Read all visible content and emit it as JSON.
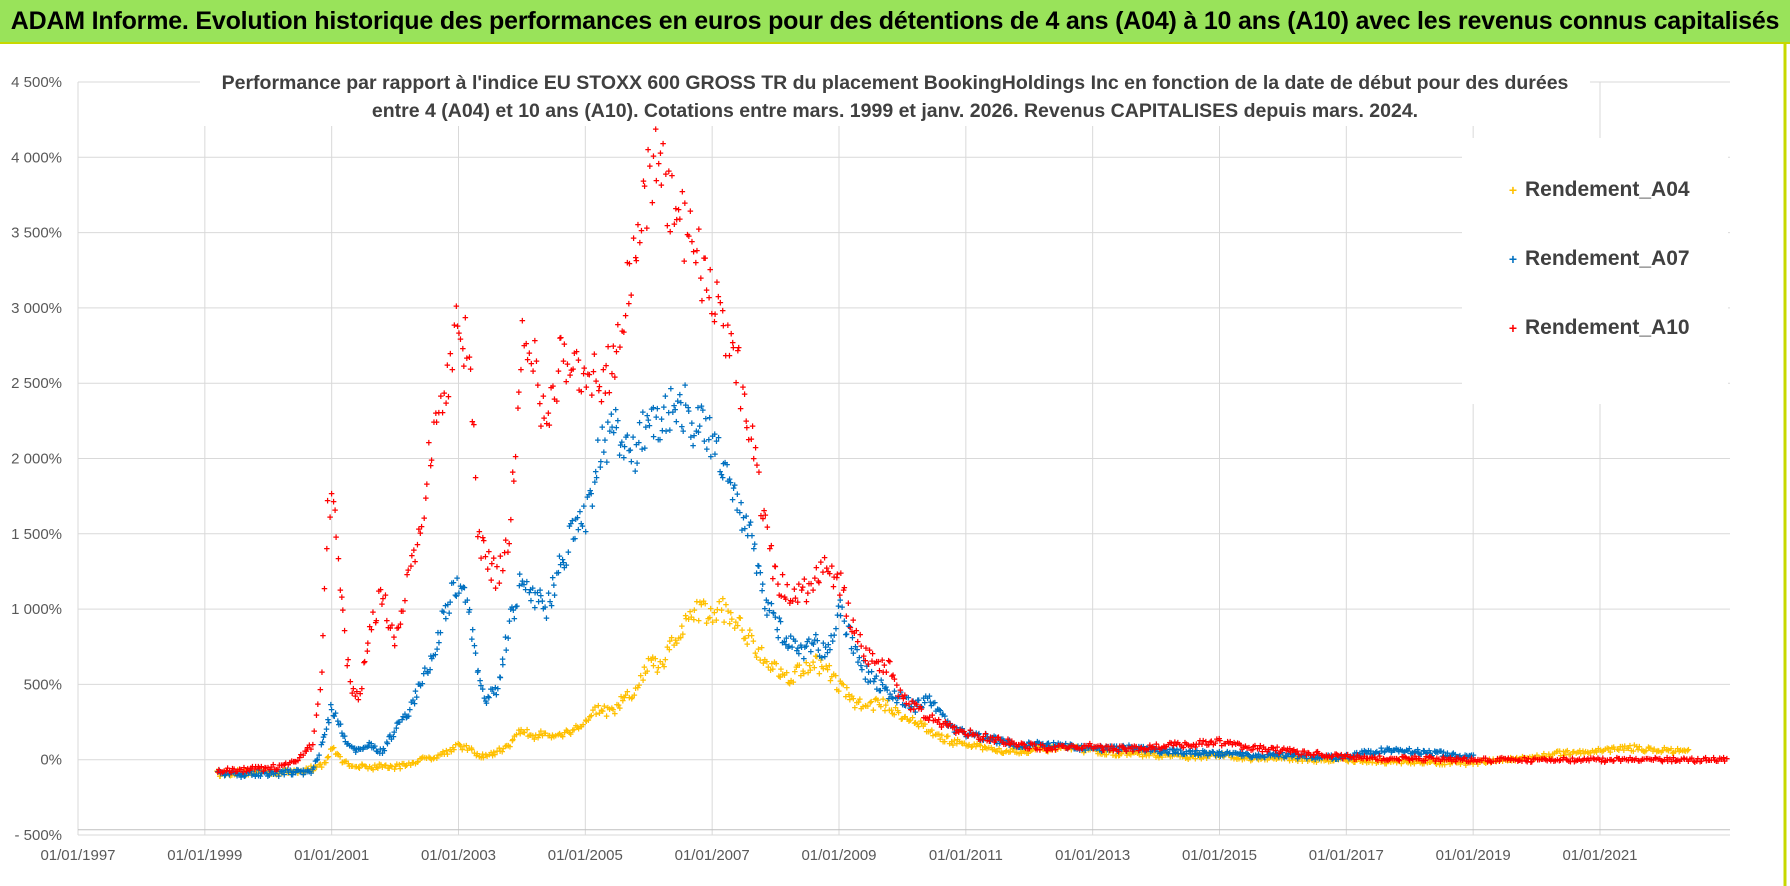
{
  "header": {
    "title": "ADAM Informe. Evolution historique des performances en euros pour des détentions de 4 ans (A04) à 10 ans (A10) avec les revenus connus capitalisés"
  },
  "colors": {
    "banner": "#99e35a",
    "a04": "#ffc000",
    "a07": "#0070c0",
    "a10": "#ff0000",
    "grid": "#d9d9d9"
  },
  "chart_data": {
    "type": "scatter",
    "title_line1": "Performance par rapport à l'indice EU STOXX 600 GROSS TR  du placement BookingHoldings Inc en fonction de la date de début pour des durées",
    "title_line2": "entre 4 (A04) et 10 ans (A10).  Cotations entre mars. 1999 et janv. 2026.  Revenus CAPITALISES depuis mars. 2024.",
    "x_ticks": [
      "01/01/1997",
      "01/01/1999",
      "01/01/2001",
      "01/01/2003",
      "01/01/2005",
      "01/01/2007",
      "01/01/2009",
      "01/01/2011",
      "01/01/2013",
      "01/01/2015",
      "01/01/2017",
      "01/01/2019",
      "01/01/2021"
    ],
    "y_ticks": [
      "- 500%",
      "0%",
      "500%",
      "1 000%",
      "1 500%",
      "2 000%",
      "2 500%",
      "3 000%",
      "3 500%",
      "4 000%",
      "4 500%"
    ],
    "xlim": [
      1997.0,
      2023.05
    ],
    "ylim": [
      -500,
      4500
    ],
    "y_unit": "%",
    "legend_position": "right",
    "series": [
      {
        "name": "Rendement_A04",
        "color": "#ffc000",
        "x": [
          1999.2,
          1999.5,
          1999.8,
          2000.1,
          2000.4,
          2000.7,
          2000.9,
          2001.0,
          2001.2,
          2001.4,
          2001.6,
          2001.8,
          2002.0,
          2002.2,
          2002.4,
          2002.6,
          2002.8,
          2003.0,
          2003.2,
          2003.4,
          2003.6,
          2003.8,
          2004.0,
          2004.2,
          2004.4,
          2004.6,
          2004.8,
          2005.0,
          2005.2,
          2005.4,
          2005.6,
          2005.8,
          2006.0,
          2006.2,
          2006.4,
          2006.6,
          2006.8,
          2007.0,
          2007.2,
          2007.4,
          2007.6,
          2007.8,
          2008.0,
          2008.2,
          2008.4,
          2008.6,
          2008.8,
          2009.0,
          2009.2,
          2009.4,
          2009.6,
          2009.8,
          2010.0,
          2010.2,
          2010.4,
          2010.6,
          2010.8,
          2011.0,
          2011.3,
          2011.6,
          2011.9,
          2012.2,
          2012.5,
          2012.8,
          2013.2,
          2013.6,
          2014.0,
          2014.5,
          2015.0,
          2015.5,
          2016.0,
          2016.5,
          2017.0,
          2017.5,
          2018.0,
          2018.5,
          2019.0,
          2019.5,
          2020.0,
          2020.5,
          2021.0,
          2021.4,
          2021.8,
          2022.1,
          2022.4
        ],
        "y": [
          -90,
          -85,
          -80,
          -80,
          -75,
          -60,
          -20,
          80,
          -20,
          -40,
          -50,
          -40,
          -50,
          -30,
          0,
          20,
          50,
          100,
          60,
          20,
          50,
          100,
          200,
          150,
          180,
          160,
          200,
          250,
          350,
          300,
          400,
          450,
          650,
          600,
          800,
          900,
          1000,
          950,
          1000,
          900,
          800,
          700,
          600,
          550,
          600,
          650,
          600,
          500,
          400,
          350,
          380,
          350,
          300,
          250,
          200,
          150,
          120,
          100,
          80,
          60,
          60,
          70,
          80,
          70,
          50,
          40,
          30,
          20,
          30,
          10,
          10,
          0,
          0,
          -10,
          -10,
          -20,
          -20,
          0,
          20,
          50,
          60,
          80,
          70,
          60,
          50
        ]
      },
      {
        "name": "Rendement_A07",
        "color": "#0070c0",
        "x": [
          1999.2,
          1999.5,
          1999.8,
          2000.1,
          2000.4,
          2000.7,
          2000.85,
          2001.0,
          2001.2,
          2001.4,
          2001.6,
          2001.8,
          2002.0,
          2002.2,
          2002.4,
          2002.6,
          2002.8,
          2003.0,
          2003.2,
          2003.3,
          2003.4,
          2003.6,
          2003.8,
          2004.0,
          2004.2,
          2004.4,
          2004.6,
          2004.8,
          2005.0,
          2005.2,
          2005.4,
          2005.6,
          2005.8,
          2006.0,
          2006.2,
          2006.4,
          2006.6,
          2006.8,
          2007.0,
          2007.2,
          2007.4,
          2007.6,
          2007.8,
          2008.0,
          2008.2,
          2008.4,
          2008.6,
          2008.8,
          2009.0,
          2009.2,
          2009.4,
          2009.6,
          2009.8,
          2010.0,
          2010.2,
          2010.4,
          2010.6,
          2010.8,
          2011.0,
          2011.3,
          2011.6,
          2011.9,
          2012.2,
          2012.5,
          2012.8,
          2013.2,
          2013.6,
          2014.0,
          2014.5,
          2015.0,
          2015.5,
          2016.0,
          2016.5,
          2017.0,
          2017.5,
          2018.0,
          2018.5,
          2019.0
        ],
        "y": [
          -90,
          -95,
          -90,
          -90,
          -85,
          -70,
          100,
          350,
          150,
          50,
          100,
          50,
          200,
          300,
          500,
          700,
          1000,
          1200,
          900,
          600,
          400,
          450,
          900,
          1200,
          1100,
          1000,
          1300,
          1500,
          1600,
          2000,
          2200,
          2100,
          2000,
          2300,
          2200,
          2400,
          2300,
          2200,
          2100,
          2000,
          1700,
          1500,
          1100,
          900,
          800,
          700,
          800,
          700,
          1000,
          800,
          600,
          500,
          450,
          400,
          350,
          400,
          300,
          200,
          180,
          150,
          120,
          100,
          100,
          90,
          80,
          70,
          80,
          60,
          50,
          40,
          30,
          30,
          20,
          20,
          60,
          60,
          40,
          20
        ]
      },
      {
        "name": "Rendement_A10",
        "color": "#ff0000",
        "x": [
          1999.2,
          1999.5,
          1999.8,
          2000.1,
          2000.4,
          2000.7,
          2000.85,
          2000.95,
          2001.05,
          2001.2,
          2001.3,
          2001.45,
          2001.6,
          2001.8,
          2002.0,
          2002.2,
          2002.4,
          2002.6,
          2002.8,
          2003.0,
          2003.2,
          2003.3,
          2003.4,
          2003.6,
          2003.8,
          2004.0,
          2004.2,
          2004.4,
          2004.6,
          2004.8,
          2005.0,
          2005.2,
          2005.4,
          2005.6,
          2005.8,
          2006.0,
          2006.2,
          2006.4,
          2006.6,
          2006.8,
          2007.0,
          2007.2,
          2007.4,
          2007.6,
          2007.8,
          2008.0,
          2008.2,
          2008.4,
          2008.6,
          2008.8,
          2009.0,
          2009.2,
          2009.4,
          2009.6,
          2009.8,
          2010.0,
          2010.2,
          2010.4,
          2010.6,
          2010.8,
          2011.0,
          2011.3,
          2011.6,
          2011.9,
          2012.2,
          2012.5,
          2012.8,
          2013.2,
          2013.6,
          2014.0,
          2014.5,
          2015.0,
          2015.5,
          2016.0,
          2016.5,
          2017.0,
          2017.5,
          2018.0,
          2018.5,
          2019.0,
          2019.5,
          2020.0,
          2020.5,
          2021.0,
          2021.5,
          2022.0,
          2022.5,
          2023.0
        ],
        "y": [
          -80,
          -70,
          -60,
          -50,
          -20,
          100,
          600,
          1800,
          1600,
          800,
          500,
          400,
          900,
          1100,
          800,
          1200,
          1500,
          2200,
          2500,
          2900,
          2600,
          1500,
          1400,
          1200,
          1500,
          2800,
          2600,
          2200,
          2700,
          2500,
          2600,
          2500,
          2600,
          3000,
          3500,
          3800,
          4000,
          3600,
          3500,
          3300,
          3200,
          2800,
          2600,
          2200,
          1600,
          1200,
          1100,
          1100,
          1200,
          1300,
          1200,
          900,
          700,
          650,
          600,
          400,
          350,
          300,
          250,
          200,
          180,
          150,
          120,
          100,
          80,
          80,
          90,
          80,
          70,
          90,
          100,
          120,
          80,
          60,
          40,
          20,
          10,
          10,
          5,
          0,
          0,
          0,
          0,
          0,
          0,
          0,
          0,
          0
        ]
      }
    ]
  }
}
